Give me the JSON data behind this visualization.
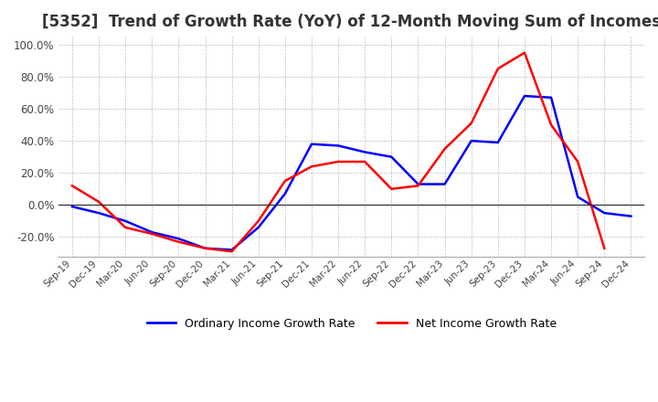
{
  "title": "[5352]  Trend of Growth Rate (YoY) of 12-Month Moving Sum of Incomes",
  "title_fontsize": 12,
  "ylim": [
    -32,
    105
  ],
  "yticks": [
    -20,
    0,
    20,
    40,
    60,
    80,
    100
  ],
  "background_color": "#ffffff",
  "grid_color": "#aaaaaa",
  "legend_labels": [
    "Ordinary Income Growth Rate",
    "Net Income Growth Rate"
  ],
  "legend_colors": [
    "#0000ff",
    "#ff0000"
  ],
  "x_labels": [
    "Sep-19",
    "Dec-19",
    "Mar-20",
    "Jun-20",
    "Sep-20",
    "Dec-20",
    "Mar-21",
    "Jun-21",
    "Sep-21",
    "Dec-21",
    "Mar-22",
    "Jun-22",
    "Sep-22",
    "Dec-22",
    "Mar-23",
    "Jun-23",
    "Sep-23",
    "Dec-23",
    "Mar-24",
    "Jun-24",
    "Sep-24",
    "Dec-24"
  ],
  "ordinary_income": [
    -1,
    -5,
    -10,
    -17,
    -21,
    -27,
    -28,
    -14,
    7,
    38,
    37,
    33,
    30,
    13,
    13,
    40,
    39,
    68,
    67,
    5,
    -5,
    -7
  ],
  "net_income": [
    12,
    2,
    -14,
    -18,
    -23,
    -27,
    -29,
    -10,
    15,
    24,
    27,
    27,
    10,
    12,
    35,
    51,
    85,
    95,
    50,
    27,
    -27,
    null
  ]
}
